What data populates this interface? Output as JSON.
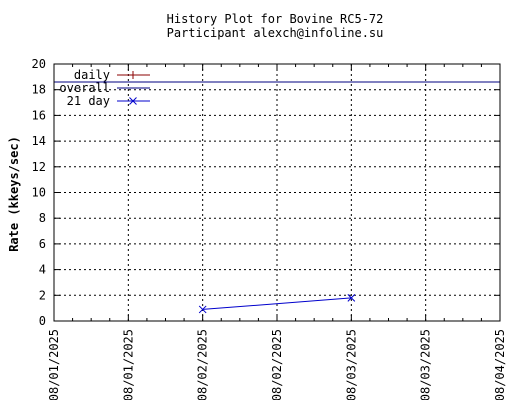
{
  "chart_data": {
    "type": "line",
    "title": "History Plot for Bovine RC5-72",
    "subtitle": "Participant alexch@infoline.su",
    "ylabel": "Rate (kkeys/sec)",
    "xlabel": "",
    "ylim": [
      0,
      20
    ],
    "yticks": [
      0,
      2,
      4,
      6,
      8,
      10,
      12,
      14,
      16,
      18,
      20
    ],
    "xlim": [
      "08/01/2025 00:00",
      "08/04/2025 00:00"
    ],
    "xticks": [
      "08/01/2025",
      "08/01/2025",
      "08/02/2025",
      "08/02/2025",
      "08/03/2025",
      "08/03/2025",
      "08/04/2025"
    ],
    "grid": true,
    "legend_position": "top-left",
    "series": [
      {
        "name": "daily",
        "color": "#8b0000",
        "marker": "plus",
        "points": []
      },
      {
        "name": "overall",
        "color": "#000080",
        "marker": "none",
        "constant": 18.6
      },
      {
        "name": "21 day",
        "color": "#0000cc",
        "marker": "x",
        "points": [
          {
            "x": "08/02/2025 00:00",
            "y": 0.9
          },
          {
            "x": "08/03/2025 00:00",
            "y": 1.8
          }
        ]
      }
    ]
  }
}
